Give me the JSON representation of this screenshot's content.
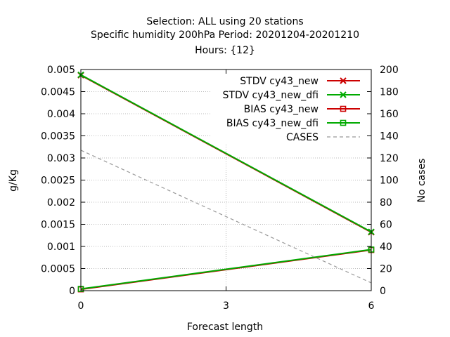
{
  "chart_data": {
    "type": "line",
    "title_lines": [
      "Selection: ALL using    20 stations",
      "Specific humidity 200hPa   Period: 20201204-20201210",
      "Hours: {12}"
    ],
    "xlabel": "Forecast length",
    "ylabel": "g/Kg",
    "y2label": "No cases",
    "x": [
      0,
      6
    ],
    "xticks": [
      0,
      3,
      6
    ],
    "xlim": [
      0,
      6
    ],
    "ylim": [
      0,
      0.005
    ],
    "yticks": [
      0,
      0.0005,
      0.001,
      0.0015,
      0.002,
      0.0025,
      0.003,
      0.0035,
      0.004,
      0.0045,
      0.005
    ],
    "ytick_labels": [
      "0",
      "0.0005",
      "0.001",
      "0.0015",
      "0.002",
      "0.0025",
      "0.003",
      "0.0035",
      "0.004",
      "0.0045",
      "0.005"
    ],
    "y2lim": [
      0,
      200
    ],
    "y2ticks": [
      0,
      20,
      40,
      60,
      80,
      100,
      120,
      140,
      160,
      180,
      200
    ],
    "grid": "partial",
    "legend_position": "top-right",
    "series": [
      {
        "name": "STDV cy43_new",
        "axis": "y",
        "values": [
          0.00487,
          0.00132
        ],
        "color": "#cc0000",
        "marker": "x",
        "dash": false
      },
      {
        "name": "STDV cy43_new_dfi",
        "axis": "y",
        "values": [
          0.00488,
          0.00133
        ],
        "color": "#00aa00",
        "marker": "x",
        "dash": false
      },
      {
        "name": "BIAS cy43_new",
        "axis": "y",
        "values": [
          3e-05,
          0.00092
        ],
        "color": "#cc0000",
        "marker": "square",
        "dash": false
      },
      {
        "name": "BIAS cy43_new_dfi",
        "axis": "y",
        "values": [
          4e-05,
          0.00093
        ],
        "color": "#00aa00",
        "marker": "square",
        "dash": false
      },
      {
        "name": "CASES",
        "axis": "y2",
        "values": [
          127,
          7
        ],
        "color": "#999999",
        "marker": "none",
        "dash": true
      }
    ]
  }
}
